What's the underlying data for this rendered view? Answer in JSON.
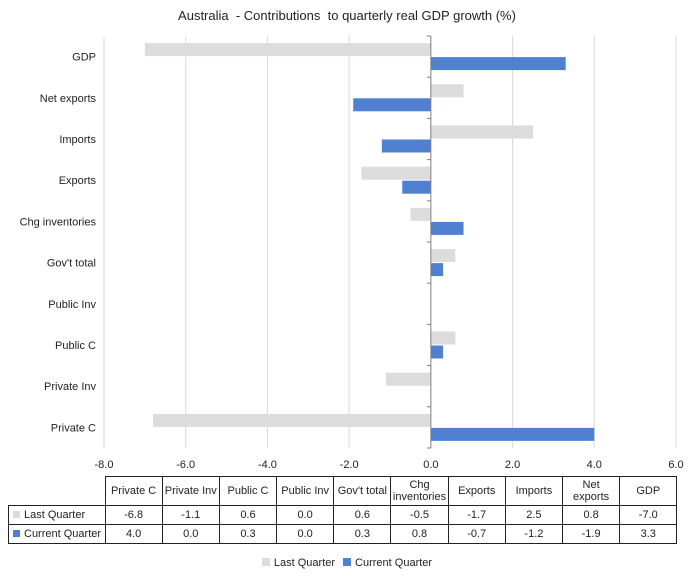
{
  "chart_data": {
    "type": "bar",
    "orientation": "horizontal",
    "title": "Australia  - Contributions  to quarterly real GDP growth (%)",
    "categories": [
      "Private C",
      "Private Inv",
      "Public C",
      "Public Inv",
      "Gov't total",
      "Chg inventories",
      "Exports",
      "Imports",
      "Net exports",
      "GDP"
    ],
    "table_headers": [
      "Private C",
      "Private Inv",
      "Public C",
      "Public Inv",
      "Gov't total",
      "Chg\ninventories",
      "Exports",
      "Imports",
      "Net\nexports",
      "GDP"
    ],
    "series": [
      {
        "name": "Last Quarter",
        "color": "#dcdcdc",
        "values": [
          -6.8,
          -1.1,
          0.6,
          0.0,
          0.6,
          -0.5,
          -1.7,
          2.5,
          0.8,
          -7.0
        ]
      },
      {
        "name": "Current Quarter",
        "color": "#4f81d0",
        "values": [
          4.0,
          0.0,
          0.3,
          0.0,
          0.3,
          0.8,
          -0.7,
          -1.2,
          -1.9,
          3.3
        ]
      }
    ],
    "display_values": [
      [
        "-6.8",
        "-1.1",
        "0.6",
        "0.0",
        "0.6",
        "-0.5",
        "-1.7",
        "2.5",
        "0.8",
        "-7.0"
      ],
      [
        "4.0",
        "0.0",
        "0.3",
        "0.0",
        "0.3",
        "0.8",
        "-0.7",
        "-1.2",
        "-1.9",
        "3.3"
      ]
    ],
    "xlim": [
      -8.0,
      6.0
    ],
    "xticks": [
      -8.0,
      -6.0,
      -4.0,
      -2.0,
      0.0,
      2.0,
      4.0,
      6.0
    ],
    "xtick_labels": [
      "-8.0",
      "-6.0",
      "-4.0",
      "-2.0",
      "0.0",
      "2.0",
      "4.0",
      "6.0"
    ],
    "grid": true,
    "legend_position": "bottom",
    "data_table": true
  }
}
